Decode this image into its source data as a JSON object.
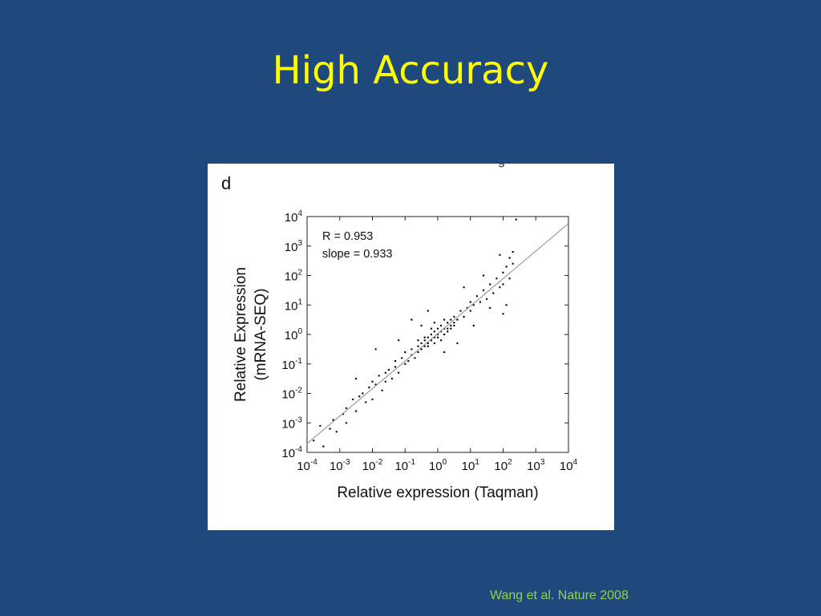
{
  "slide": {
    "title": "High Accuracy",
    "citation": "Wang et al. Nature 2008",
    "panel_letter": "d",
    "top_glyph": "g"
  },
  "colors": {
    "background": "#1f497d",
    "title": "#ffff00",
    "citation": "#92d050",
    "points": "#000000",
    "fit_line": "#9a9a9a"
  },
  "chart_data": {
    "type": "scatter",
    "xlabel": "Relative expression (Taqman)",
    "ylabel_line1": "Relative Expression",
    "ylabel_line2": "(mRNA-SEQ)",
    "x_scale": "log10",
    "y_scale": "log10",
    "xlim": [
      0.0001,
      10000
    ],
    "ylim": [
      0.0001,
      10000
    ],
    "tick_exponents": [
      -4,
      -3,
      -2,
      -1,
      0,
      1,
      2,
      3,
      4
    ],
    "annotations": [
      "R = 0.953",
      "slope = 0.933"
    ],
    "fit_line": {
      "slope": 0.933,
      "log10_intercept": 0.03
    },
    "grid": false,
    "legend": "none",
    "points_log10": [
      [
        -3.8,
        -3.6
      ],
      [
        -3.6,
        -3.1
      ],
      [
        -3.5,
        -3.8
      ],
      [
        -3.3,
        -3.2
      ],
      [
        -3.2,
        -2.9
      ],
      [
        -3.1,
        -3.3
      ],
      [
        -2.9,
        -2.7
      ],
      [
        -2.8,
        -2.5
      ],
      [
        -2.8,
        -3.0
      ],
      [
        -2.6,
        -2.2
      ],
      [
        -2.5,
        -2.6
      ],
      [
        -2.4,
        -2.1
      ],
      [
        -2.3,
        -2.0
      ],
      [
        -2.2,
        -2.3
      ],
      [
        -2.1,
        -1.8
      ],
      [
        -2.0,
        -2.2
      ],
      [
        -2.0,
        -1.6
      ],
      [
        -1.9,
        -1.7
      ],
      [
        -1.8,
        -1.4
      ],
      [
        -1.7,
        -1.9
      ],
      [
        -1.6,
        -1.3
      ],
      [
        -1.6,
        -1.6
      ],
      [
        -1.5,
        -1.2
      ],
      [
        -1.4,
        -1.5
      ],
      [
        -1.3,
        -1.1
      ],
      [
        -1.3,
        -0.9
      ],
      [
        -1.2,
        -1.3
      ],
      [
        -1.1,
        -0.8
      ],
      [
        -1.0,
        -1.0
      ],
      [
        -1.0,
        -0.6
      ],
      [
        -0.9,
        -0.9
      ],
      [
        -0.8,
        -0.5
      ],
      [
        -0.8,
        -0.7
      ],
      [
        -0.7,
        -0.8
      ],
      [
        -0.6,
        -0.4
      ],
      [
        -0.6,
        -0.6
      ],
      [
        -0.5,
        -0.3
      ],
      [
        -0.5,
        -0.5
      ],
      [
        -0.4,
        -0.2
      ],
      [
        -0.4,
        -0.4
      ],
      [
        -0.3,
        -0.1
      ],
      [
        -0.3,
        -0.3
      ],
      [
        -0.2,
        0.0
      ],
      [
        -0.2,
        -0.2
      ],
      [
        -0.1,
        0.1
      ],
      [
        -0.1,
        -0.1
      ],
      [
        0.0,
        0.0
      ],
      [
        0.0,
        0.2
      ],
      [
        0.1,
        0.1
      ],
      [
        0.1,
        0.3
      ],
      [
        0.2,
        0.2
      ],
      [
        0.2,
        0.0
      ],
      [
        0.3,
        0.4
      ],
      [
        0.3,
        0.2
      ],
      [
        0.4,
        0.3
      ],
      [
        0.4,
        0.5
      ],
      [
        0.5,
        0.6
      ],
      [
        0.5,
        0.4
      ],
      [
        0.6,
        0.5
      ],
      [
        0.7,
        0.8
      ],
      [
        0.8,
        0.6
      ],
      [
        0.9,
        0.9
      ],
      [
        1.0,
        1.1
      ],
      [
        1.0,
        0.8
      ],
      [
        1.1,
        1.0
      ],
      [
        1.2,
        1.3
      ],
      [
        1.3,
        1.1
      ],
      [
        1.4,
        1.5
      ],
      [
        1.5,
        1.2
      ],
      [
        1.6,
        1.7
      ],
      [
        1.7,
        1.4
      ],
      [
        1.8,
        1.9
      ],
      [
        1.9,
        1.6
      ],
      [
        2.0,
        2.1
      ],
      [
        2.0,
        1.7
      ],
      [
        2.1,
        2.3
      ],
      [
        2.2,
        1.9
      ],
      [
        2.2,
        2.6
      ],
      [
        2.3,
        2.4
      ],
      [
        2.3,
        2.8
      ],
      [
        2.4,
        3.9
      ],
      [
        -1.2,
        -0.2
      ],
      [
        -0.8,
        0.5
      ],
      [
        -0.3,
        0.8
      ],
      [
        0.2,
        -0.6
      ],
      [
        0.6,
        -0.3
      ],
      [
        1.1,
        0.3
      ],
      [
        1.6,
        0.9
      ],
      [
        2.1,
        1.0
      ],
      [
        2.0,
        0.7
      ],
      [
        -2.5,
        -1.5
      ],
      [
        -1.9,
        -0.5
      ],
      [
        -0.5,
        0.3
      ],
      [
        0.8,
        1.6
      ],
      [
        1.4,
        2.0
      ],
      [
        1.9,
        2.7
      ],
      [
        -0.1,
        0.4
      ],
      [
        0.1,
        -0.2
      ],
      [
        -0.2,
        0.2
      ],
      [
        0.0,
        -0.1
      ],
      [
        0.3,
        0.1
      ],
      [
        -0.4,
        -0.1
      ],
      [
        0.2,
        0.5
      ],
      [
        -0.3,
        -0.4
      ],
      [
        0.4,
        0.2
      ],
      [
        -0.1,
        -0.3
      ],
      [
        0.5,
        0.3
      ],
      [
        -0.6,
        -0.2
      ]
    ]
  }
}
